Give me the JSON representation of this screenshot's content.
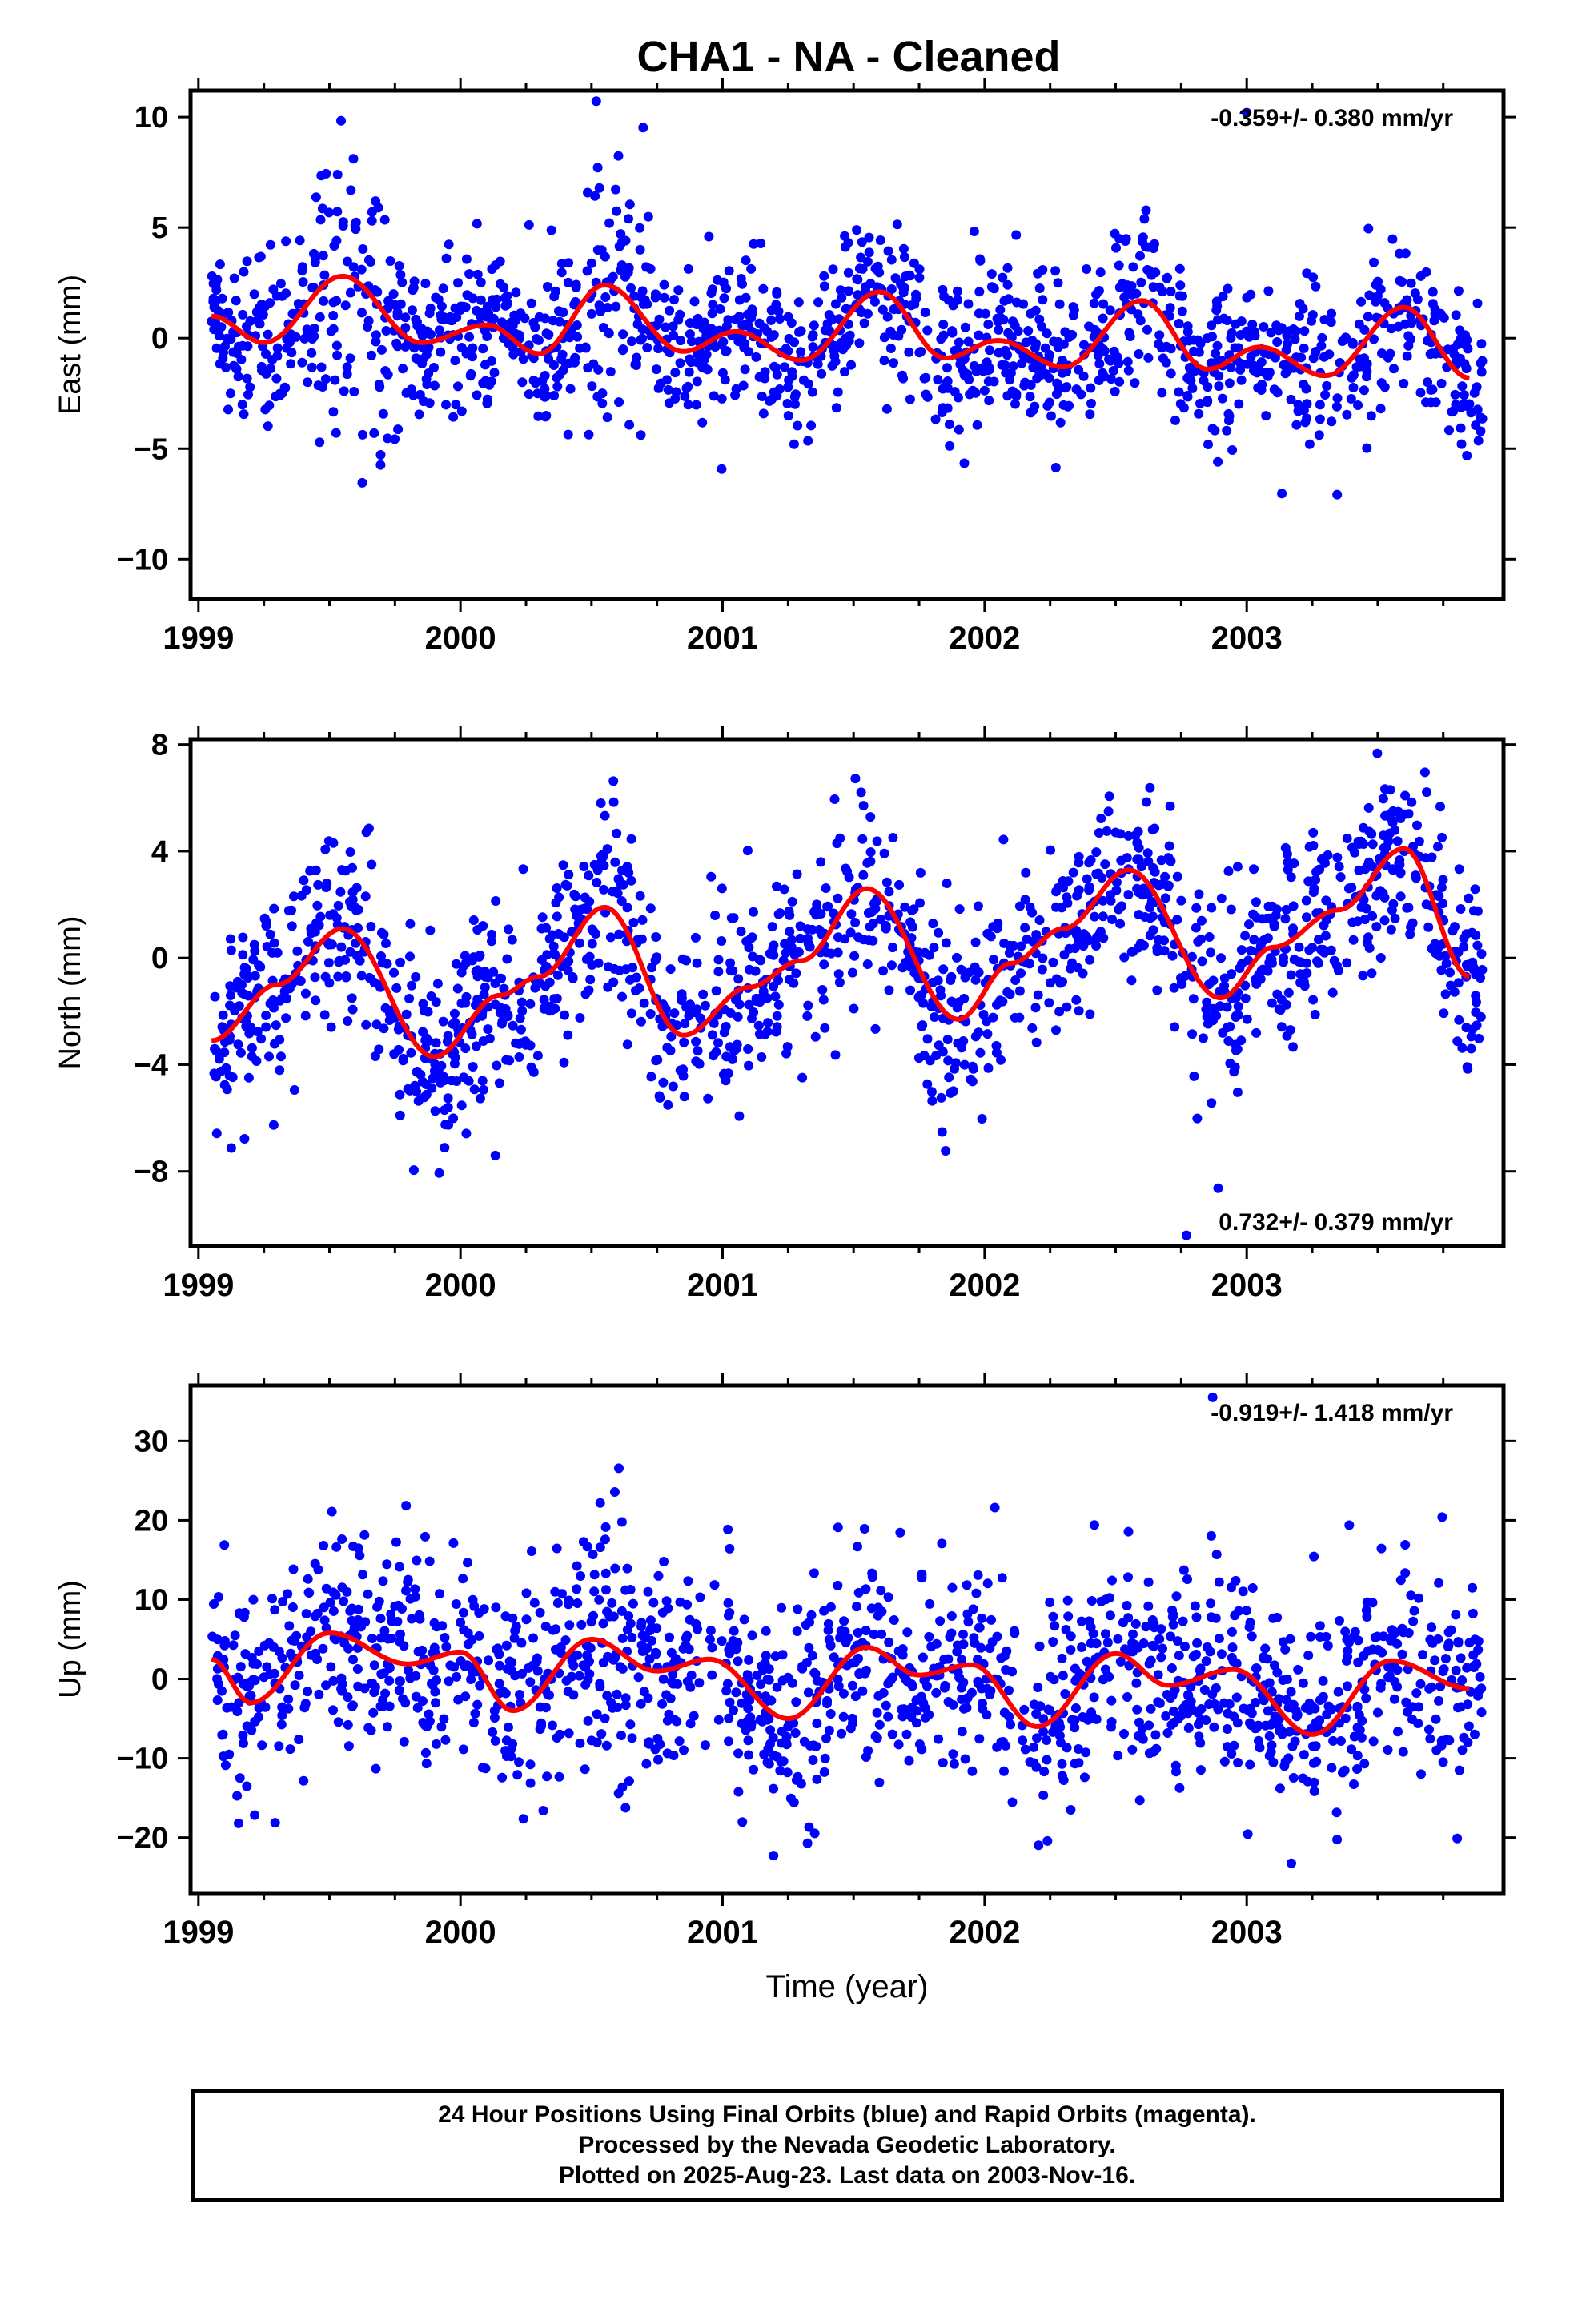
{
  "title": "CHA1  - NA - Cleaned",
  "chart_data": [
    {
      "type": "scatter",
      "ylabel": "East (mm)",
      "xlabel": "",
      "rate_label": "-0.359+/- 0.380 mm/yr",
      "xlim": [
        1998.97,
        2003.98
      ],
      "ylim": [
        -11.8,
        11.2
      ],
      "yticks": [
        10,
        5,
        0,
        -5,
        -10
      ],
      "ytick_labels": [
        "10",
        "5",
        "0",
        "−5",
        "−10"
      ],
      "xticks": [
        1999,
        2000,
        2001,
        2002,
        2003
      ],
      "xtick_labels": [
        "1999",
        "2000",
        "2001",
        "2002",
        "2003"
      ],
      "series": [
        {
          "color": "#0000ff",
          "point_count": 1500
        },
        {
          "color": "#ff0000",
          "values": [
            [
              1999.05,
              1.0
            ],
            [
              1999.25,
              -0.2
            ],
            [
              1999.55,
              2.8
            ],
            [
              1999.85,
              -0.2
            ],
            [
              2000.1,
              0.6
            ],
            [
              2000.3,
              -0.7
            ],
            [
              2000.55,
              2.4
            ],
            [
              2000.85,
              -0.6
            ],
            [
              2001.05,
              0.3
            ],
            [
              2001.3,
              -1.0
            ],
            [
              2001.6,
              2.1
            ],
            [
              2001.85,
              -0.9
            ],
            [
              2002.05,
              -0.1
            ],
            [
              2002.3,
              -1.3
            ],
            [
              2002.6,
              1.7
            ],
            [
              2002.85,
              -1.4
            ],
            [
              2003.05,
              -0.4
            ],
            [
              2003.3,
              -1.7
            ],
            [
              2003.6,
              1.4
            ],
            [
              2003.85,
              -1.8
            ]
          ]
        }
      ],
      "outliers": [
        {
          "x": 2003.0,
          "y": 10.2
        }
      ]
    },
    {
      "type": "scatter",
      "ylabel": "North (mm)",
      "xlabel": "",
      "rate_label": "0.732+/- 0.379 mm/yr",
      "xlim": [
        1998.97,
        2003.98
      ],
      "ylim": [
        -10.8,
        8.2
      ],
      "yticks": [
        8,
        4,
        0,
        -4,
        -8
      ],
      "ytick_labels": [
        "8",
        "4",
        "0",
        "−4",
        "−8"
      ],
      "xticks": [
        1999,
        2000,
        2001,
        2002,
        2003
      ],
      "xtick_labels": [
        "1999",
        "2000",
        "2001",
        "2002",
        "2003"
      ],
      "series": [
        {
          "color": "#0000ff",
          "point_count": 1500
        },
        {
          "color": "#ff0000",
          "values": [
            [
              1999.05,
              -3.1
            ],
            [
              1999.3,
              -1.0
            ],
            [
              1999.55,
              1.1
            ],
            [
              1999.9,
              -3.7
            ],
            [
              2000.15,
              -1.4
            ],
            [
              2000.3,
              -0.7
            ],
            [
              2000.55,
              1.9
            ],
            [
              2000.85,
              -2.9
            ],
            [
              2001.1,
              -1.1
            ],
            [
              2001.3,
              -0.1
            ],
            [
              2001.55,
              2.6
            ],
            [
              2001.9,
              -2.3
            ],
            [
              2002.1,
              -0.2
            ],
            [
              2002.3,
              1.1
            ],
            [
              2002.55,
              3.3
            ],
            [
              2002.9,
              -1.5
            ],
            [
              2003.1,
              0.4
            ],
            [
              2003.35,
              1.8
            ],
            [
              2003.6,
              4.1
            ],
            [
              2003.85,
              -0.7
            ]
          ]
        }
      ],
      "outliers": [
        {
          "x": 2002.77,
          "y": -10.4
        }
      ]
    },
    {
      "type": "scatter",
      "ylabel": "Up (mm)",
      "xlabel": "Time (year)",
      "rate_label": "-0.919+/- 1.418 mm/yr",
      "xlim": [
        1998.97,
        2003.98
      ],
      "ylim": [
        -27,
        37
      ],
      "yticks": [
        30,
        20,
        10,
        0,
        -10,
        -20
      ],
      "ytick_labels": [
        "30",
        "20",
        "10",
        "0",
        "−10",
        "−20"
      ],
      "xticks": [
        1999,
        2000,
        2001,
        2002,
        2003
      ],
      "xtick_labels": [
        "1999",
        "2000",
        "2001",
        "2002",
        "2003"
      ],
      "series": [
        {
          "color": "#0000ff",
          "point_count": 1500
        },
        {
          "color": "#ff0000",
          "values": [
            [
              1999.05,
              2.5
            ],
            [
              1999.2,
              -3.0
            ],
            [
              1999.5,
              5.8
            ],
            [
              1999.8,
              1.9
            ],
            [
              2000.0,
              3.4
            ],
            [
              2000.2,
              -4.0
            ],
            [
              2000.5,
              5.0
            ],
            [
              2000.75,
              1.0
            ],
            [
              2000.95,
              2.5
            ],
            [
              2001.25,
              -5.0
            ],
            [
              2001.55,
              4.0
            ],
            [
              2001.75,
              0.5
            ],
            [
              2001.95,
              1.8
            ],
            [
              2002.2,
              -6.0
            ],
            [
              2002.5,
              3.2
            ],
            [
              2002.7,
              -0.8
            ],
            [
              2002.95,
              1.2
            ],
            [
              2003.25,
              -7.0
            ],
            [
              2003.55,
              2.3
            ],
            [
              2003.85,
              -1.2
            ]
          ]
        }
      ],
      "outliers": [
        {
          "x": 2002.87,
          "y": 35.5
        }
      ]
    }
  ],
  "footer": {
    "line1": "24 Hour Positions Using Final Orbits (blue) and Rapid Orbits (magenta).",
    "line2": "Processed by the Nevada Geodetic Laboratory.",
    "line3": "Plotted on 2025-Aug-23. Last data on 2003-Nov-16."
  }
}
